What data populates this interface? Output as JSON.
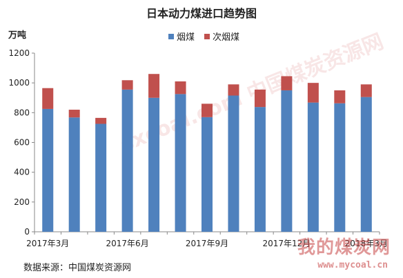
{
  "chart_data": {
    "type": "bar",
    "stacked": true,
    "title": "日本动力煤进口趋势图",
    "ylabel": "万吨",
    "ylim": [
      0,
      1200
    ],
    "yticks": [
      0,
      200,
      400,
      600,
      800,
      1000,
      1200
    ],
    "categories": [
      "2017-03",
      "2017-04",
      "2017-05",
      "2017-06",
      "2017-07",
      "2017-08",
      "2017-09",
      "2017-10",
      "2017-11",
      "2017-12",
      "2018-01",
      "2018-02",
      "2018-03"
    ],
    "x_tick_labels": [
      {
        "index": 0,
        "label": "2017年3月"
      },
      {
        "index": 3,
        "label": "2017年6月"
      },
      {
        "index": 6,
        "label": "2017年9月"
      },
      {
        "index": 9,
        "label": "2017年12月"
      },
      {
        "index": 12,
        "label": "2018年3月"
      }
    ],
    "series": [
      {
        "name": "烟煤",
        "color": "#4f81bd",
        "values": [
          825,
          768,
          725,
          955,
          900,
          925,
          770,
          915,
          838,
          950,
          868,
          863,
          905
        ]
      },
      {
        "name": "次烟煤",
        "color": "#c0504d",
        "values": [
          140,
          52,
          40,
          63,
          160,
          85,
          90,
          75,
          117,
          95,
          132,
          87,
          85
        ]
      }
    ],
    "grid": false,
    "legend_position": "top-center"
  },
  "source_label": "数据来源：中国煤炭资源网",
  "watermark": {
    "brand": "我的煤炭网",
    "url": "www.mycoal.cn",
    "center_text": "sxcoal.com 中国煤炭资源网"
  }
}
